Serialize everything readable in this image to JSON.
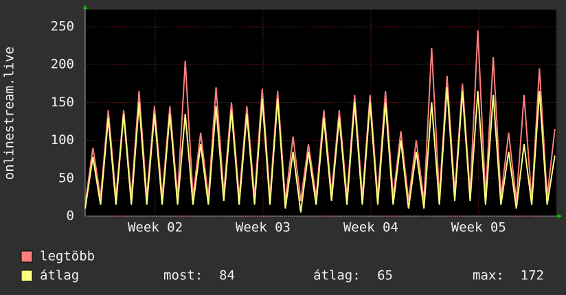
{
  "chart_data": {
    "type": "line",
    "y_label": "onlinestream.live",
    "x": [
      0,
      0.5,
      1,
      1.5,
      2,
      2.5,
      3,
      3.5,
      4,
      4.5,
      5,
      5.5,
      6,
      6.5,
      7,
      7.5,
      8,
      8.5,
      9,
      9.5,
      10,
      10.5,
      11,
      11.5,
      12,
      12.5,
      13,
      13.5,
      14,
      14.5,
      15,
      15.5,
      16,
      16.5,
      17,
      17.5,
      18,
      18.5,
      19,
      19.5,
      20,
      20.5,
      21,
      21.5,
      22,
      22.5,
      23,
      23.5,
      24,
      24.5,
      25,
      25.5,
      26,
      26.5,
      27,
      27.5,
      28,
      28.5,
      29,
      29.5,
      30,
      30.5
    ],
    "xlim": [
      0,
      30.6
    ],
    "xticks": [
      {
        "value": 4.55,
        "label": "Week 02"
      },
      {
        "value": 11.55,
        "label": "Week 03"
      },
      {
        "value": 18.55,
        "label": "Week 04"
      },
      {
        "value": 25.55,
        "label": "Week 05"
      }
    ],
    "ylim": [
      0,
      272.6
    ],
    "yticks": [
      0,
      50,
      100,
      150,
      200,
      250
    ],
    "grid": true,
    "series": [
      {
        "name": "legtöbb",
        "color": "#ff7f7f",
        "values": [
          15,
          90,
          25,
          140,
          25,
          140,
          25,
          165,
          25,
          145,
          25,
          145,
          25,
          205,
          25,
          110,
          25,
          170,
          30,
          150,
          25,
          145,
          25,
          168,
          25,
          165,
          20,
          105,
          20,
          95,
          25,
          140,
          30,
          140,
          25,
          160,
          25,
          160,
          25,
          165,
          25,
          112,
          20,
          100,
          20,
          222,
          25,
          185,
          30,
          175,
          30,
          245,
          25,
          210,
          25,
          110,
          20,
          160,
          20,
          195,
          25,
          115
        ]
      },
      {
        "name": "átlag",
        "color": "#ffff7f",
        "values": [
          10,
          78,
          15,
          130,
          15,
          135,
          15,
          150,
          15,
          135,
          15,
          135,
          15,
          135,
          15,
          95,
          15,
          145,
          20,
          140,
          15,
          135,
          15,
          155,
          15,
          155,
          10,
          85,
          5,
          85,
          15,
          130,
          20,
          130,
          15,
          150,
          15,
          150,
          15,
          150,
          15,
          100,
          10,
          85,
          10,
          150,
          15,
          170,
          20,
          165,
          20,
          165,
          15,
          160,
          15,
          85,
          10,
          95,
          15,
          165,
          15,
          80
        ]
      }
    ],
    "stats": [
      {
        "label": "most:",
        "value": 84
      },
      {
        "label": "átlag:",
        "value": 65
      },
      {
        "label": "max:",
        "value": 172
      }
    ]
  }
}
